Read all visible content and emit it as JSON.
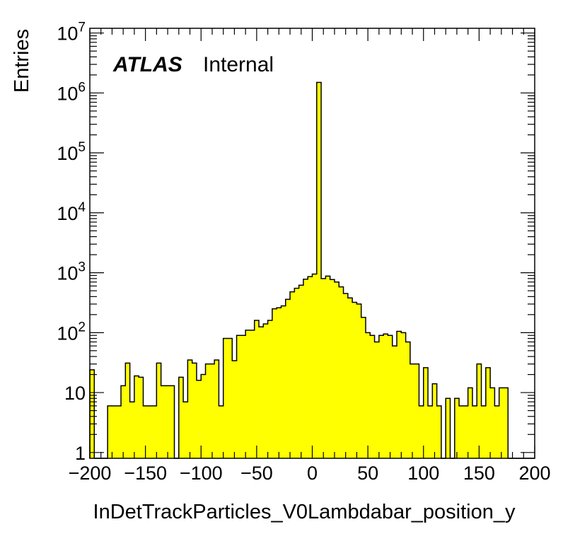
{
  "chart_data": {
    "type": "bar",
    "style": "histogram",
    "xlabel": "InDetTrackParticles_V0Lambdabar_position_y",
    "ylabel": "Entries",
    "label_main": "ATLAS",
    "label_sub": "Internal",
    "xlim": [
      -200,
      200
    ],
    "ylim": [
      0.8,
      12000000
    ],
    "yscale": "log",
    "grid": false,
    "fill_color": "#ffff00",
    "line_color": "#000000",
    "x_ticks": [
      "−200",
      "−150",
      "−100",
      "−50",
      "0",
      "50",
      "100",
      "150",
      "200"
    ],
    "y_ticks": [
      "1",
      "10",
      "10^2",
      "10^3",
      "10^4",
      "10^5",
      "10^6",
      "10^7"
    ],
    "bin_width": 4,
    "bin_edges_start": -200,
    "values": [
      24,
      0,
      0,
      0,
      6,
      6,
      6,
      13,
      31,
      7,
      19,
      18,
      6,
      6,
      6,
      31,
      13,
      13,
      13,
      0,
      18,
      7,
      35,
      31,
      16,
      20,
      30,
      30,
      35,
      6,
      80,
      80,
      34,
      90,
      90,
      110,
      110,
      160,
      125,
      140,
      160,
      250,
      260,
      280,
      360,
      480,
      550,
      620,
      780,
      860,
      950,
      1500000,
      800,
      880,
      770,
      700,
      580,
      450,
      380,
      320,
      300,
      180,
      100,
      90,
      70,
      90,
      95,
      90,
      60,
      105,
      100,
      70,
      30,
      30,
      6,
      26,
      6,
      14,
      6,
      0,
      8,
      0,
      8,
      6,
      6,
      12,
      6,
      30,
      6,
      26,
      12,
      6,
      12,
      12,
      0,
      0,
      0,
      0,
      0,
      0
    ]
  }
}
